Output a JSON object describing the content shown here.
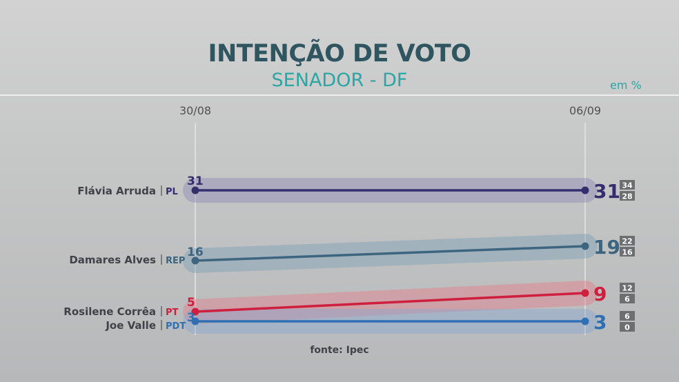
{
  "header": {
    "title": "INTENÇÃO DE VOTO",
    "subtitle": "SENADOR - DF",
    "unit": "em %"
  },
  "colors": {
    "background": "#c9caca",
    "title": "#2f5560",
    "subtitle": "#2aa6a4",
    "band": "#b4b8c8",
    "grid": "#e6e6e6"
  },
  "chart_data": {
    "type": "line",
    "title": "INTENÇÃO DE VOTO",
    "subtitle": "SENADOR - DF",
    "unit": "em %",
    "x": [
      "30/08",
      "06/09"
    ],
    "source": "fonte: Ipec",
    "series": [
      {
        "name": "Flávia Arruda",
        "party": "PL",
        "color": "#342e6e",
        "band_color": "#8a86b6",
        "values": [
          31,
          31
        ],
        "range_high": "34",
        "range_low": "28"
      },
      {
        "name": "Damares Alves",
        "party": "REP",
        "color": "#3d6580",
        "band_color": "#7b9fb8",
        "values": [
          16,
          19
        ],
        "range_high": "22",
        "range_low": "16"
      },
      {
        "name": "Rosilene Corrêa",
        "party": "PT",
        "color": "#cf1f3e",
        "band_color": "#e87a88",
        "values": [
          5,
          9
        ],
        "range_high": "12",
        "range_low": "6"
      },
      {
        "name": "Joe Valle",
        "party": "PDT",
        "color": "#2f6fb3",
        "band_color": "#86a8d4",
        "values": [
          3,
          3
        ],
        "range_high": "6",
        "range_low": "0"
      }
    ]
  }
}
